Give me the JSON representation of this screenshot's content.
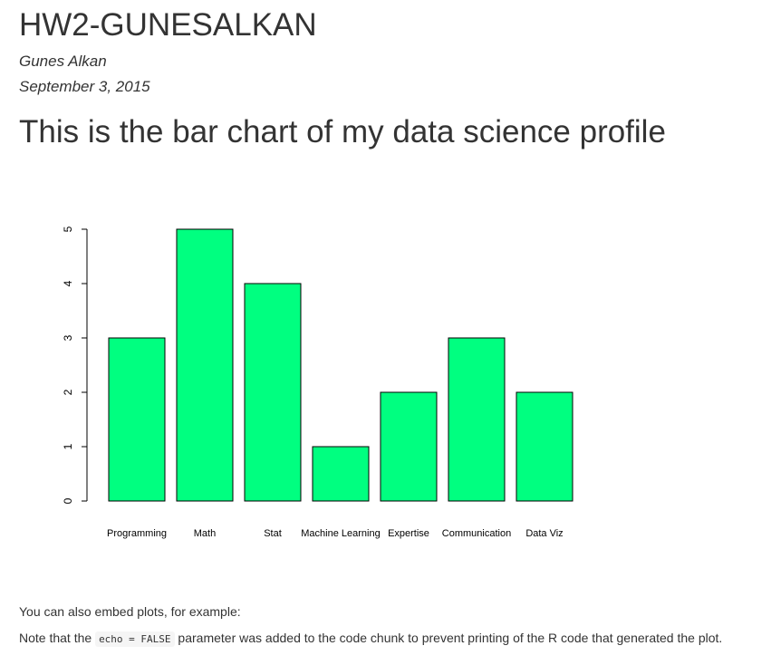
{
  "document": {
    "title": "HW2-GUNESALKAN",
    "author": "Gunes Alkan",
    "date": "September 3, 2015"
  },
  "section": {
    "heading": "This is the bar chart of my data science profile"
  },
  "chart_data": {
    "type": "bar",
    "categories": [
      "Programming",
      "Math",
      "Stat",
      "Machine Learning",
      "Expertise",
      "Communication",
      "Data Viz"
    ],
    "values": [
      3,
      5,
      4,
      1,
      2,
      3,
      2
    ],
    "title": "",
    "xlabel": "",
    "ylabel": "",
    "ylim": [
      0,
      5
    ],
    "yticks": [
      0,
      1,
      2,
      3,
      4,
      5
    ],
    "bar_color": "#00ff80",
    "bar_border_color": "#000000",
    "grid": false
  },
  "paragraphs": {
    "p1": "You can also embed plots, for example:",
    "p2_before": "Note that the ",
    "p2_code": "echo = FALSE",
    "p2_after": " parameter was added to the code chunk to prevent printing of the R code that generated the plot."
  }
}
